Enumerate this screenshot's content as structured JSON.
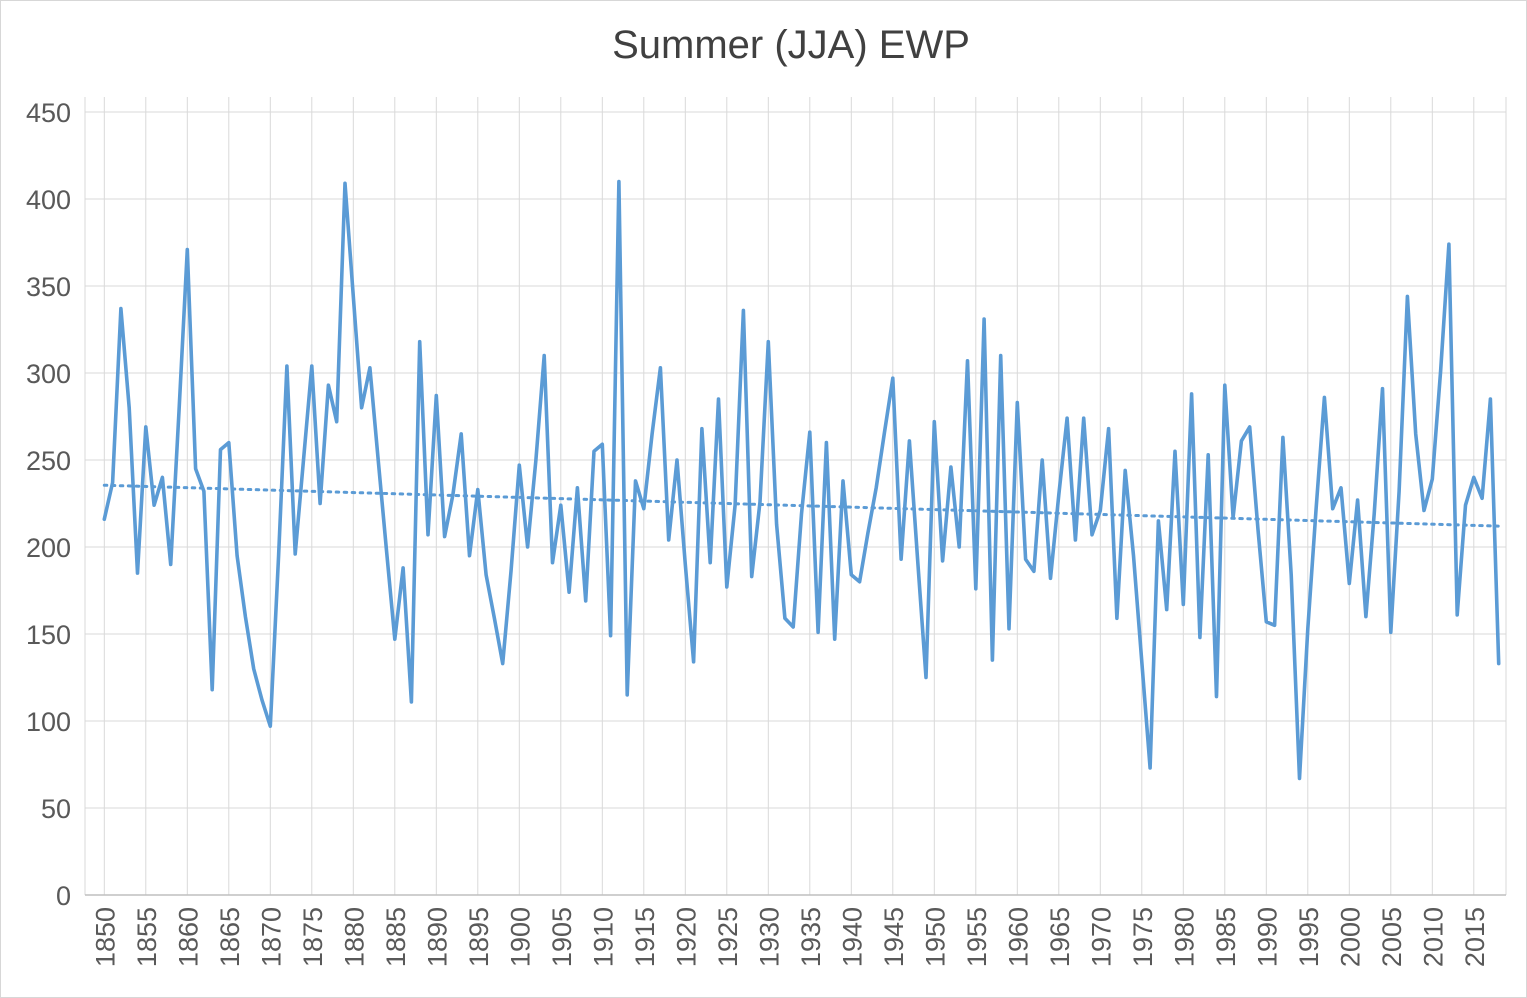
{
  "title": "Summer (JJA) EWP",
  "chart_data": {
    "type": "line",
    "title": "Summer (JJA) EWP",
    "xlabel": "",
    "ylabel": "",
    "x_start": 1850,
    "x_step": 1,
    "x_end": 2018,
    "ylim": [
      0,
      450
    ],
    "ytick_step": 50,
    "grid": true,
    "legend_position": "none",
    "y_tick_labels": [
      "0",
      "50",
      "100",
      "150",
      "200",
      "250",
      "300",
      "350",
      "400",
      "450"
    ],
    "x_tick_labels": [
      "1850",
      "1855",
      "1860",
      "1865",
      "1870",
      "1875",
      "1880",
      "1885",
      "1890",
      "1895",
      "1900",
      "1905",
      "1910",
      "1915",
      "1920",
      "1925",
      "1930",
      "1935",
      "1940",
      "1945",
      "1950",
      "1955",
      "1960",
      "1965",
      "1970",
      "1975",
      "1980",
      "1985",
      "1990",
      "1995",
      "2000",
      "2005",
      "2010",
      "2015"
    ],
    "series": [
      {
        "name": "Summer (JJA) EWP",
        "values": [
          216,
          237,
          337,
          280,
          185,
          269,
          224,
          240,
          190,
          278,
          371,
          245,
          232,
          118,
          256,
          260,
          195,
          160,
          130,
          112,
          97,
          195,
          304,
          196,
          250,
          304,
          225,
          293,
          272,
          409,
          344,
          280,
          303,
          250,
          198,
          147,
          188,
          111,
          318,
          207,
          287,
          206,
          230,
          265,
          195,
          233,
          184,
          159,
          133,
          186,
          247,
          200,
          250,
          310,
          191,
          224,
          174,
          234,
          169,
          255,
          259,
          149,
          410,
          115,
          238,
          222,
          265,
          303,
          204,
          250,
          190,
          134,
          268,
          191,
          285,
          177,
          224,
          336,
          183,
          226,
          318,
          213,
          159,
          154,
          219,
          266,
          151,
          260,
          147,
          238,
          184,
          180,
          208,
          234,
          266,
          297,
          193,
          261,
          192,
          125,
          272,
          192,
          246,
          200,
          307,
          176,
          331,
          135,
          310,
          153,
          283,
          193,
          186,
          250,
          182,
          230,
          274,
          204,
          274,
          207,
          221,
          268,
          159,
          244,
          195,
          134,
          73,
          215,
          164,
          255,
          167,
          288,
          148,
          253,
          114,
          293,
          217,
          261,
          269,
          210,
          157,
          155,
          263,
          184,
          67,
          153,
          222,
          286,
          222,
          234,
          179,
          227,
          160,
          219,
          291,
          151,
          232,
          344,
          265,
          221,
          239,
          301,
          374,
          161,
          224,
          240,
          228,
          285,
          133
        ]
      }
    ],
    "trendline": {
      "style": "dotted",
      "start_year": 1850,
      "start_value": 235.5,
      "end_year": 2018,
      "end_value": 212
    },
    "colors": {
      "series_line": "#5B9BD5",
      "trendline": "#5B9BD5",
      "gridline": "#D9D9D9",
      "axis_line": "#BFBFBF",
      "tick_label_text": "#595959",
      "title_text": "#404040",
      "background": "#FFFFFF",
      "chart_border": "#D7D7D7"
    }
  }
}
